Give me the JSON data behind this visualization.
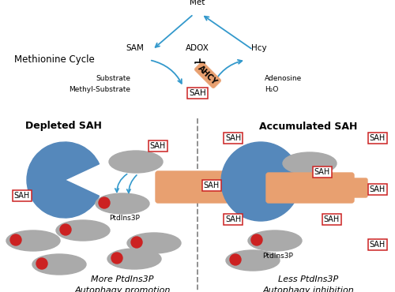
{
  "background_color": "#ffffff",
  "methionine_cycle_label": "Methionine Cycle",
  "arrow_color": "#3399cc",
  "sah_ec": "#cc2222",
  "pik3c3_color": "#5588bb",
  "ptdins_color": "#aaaaaa",
  "ahcyl1_color": "#e8a070",
  "red_dot_color": "#cc2222",
  "depleted_label": "Depleted SAH",
  "accumulated_label": "Accumulated SAH",
  "more_ptdins3p": "More PtdIns3P",
  "less_ptdins3p": "Less PtdIns3P",
  "autophagy_promotion": "Autophagy promotion",
  "autophagy_inhibition": "Autophagy inhibition"
}
